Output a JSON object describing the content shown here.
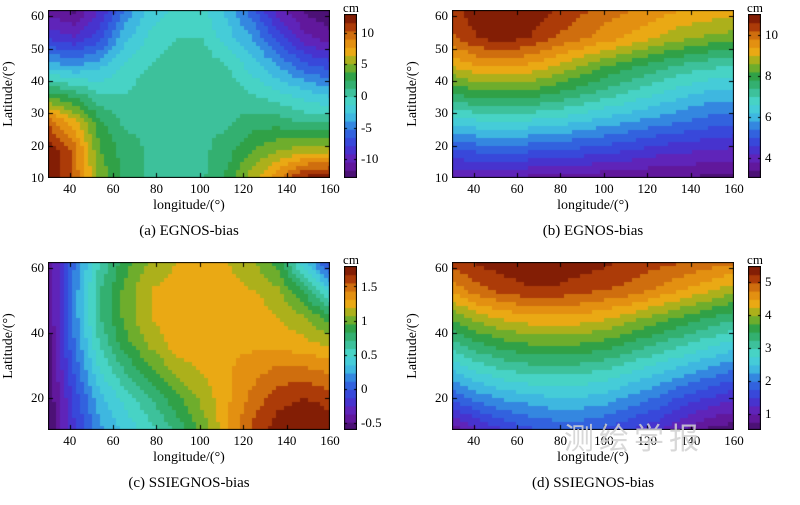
{
  "figure": {
    "background": "#ffffff",
    "text_color": "#000000",
    "watermark": "测绘学报",
    "levels": 20,
    "colormap_stops": [
      [
        0.0,
        "#420d63"
      ],
      [
        0.1,
        "#6b1caf"
      ],
      [
        0.2,
        "#3b3bd8"
      ],
      [
        0.3,
        "#2f6fe0"
      ],
      [
        0.38,
        "#3fbce0"
      ],
      [
        0.46,
        "#4ad8d2"
      ],
      [
        0.62,
        "#2aa04a"
      ],
      [
        0.7,
        "#8db31e"
      ],
      [
        0.78,
        "#f0a813"
      ],
      [
        0.86,
        "#d97d10"
      ],
      [
        0.93,
        "#a83607"
      ],
      [
        1.0,
        "#6e1004"
      ]
    ]
  },
  "chart_data": [
    {
      "type": "heatmap",
      "style": "filled-contour",
      "caption": "(a) EGNOS-bias",
      "xlabel": "longitude/(°)",
      "ylabel": "Latitude/(°)",
      "x_range": [
        30,
        160
      ],
      "y_range": [
        10,
        62
      ],
      "x_ticks": [
        40,
        60,
        80,
        100,
        120,
        140,
        160
      ],
      "y_ticks": [
        10,
        20,
        30,
        40,
        50,
        60
      ],
      "colorbar": {
        "label": "cm",
        "vmin": -13,
        "vmax": 13,
        "ticks": [
          {
            "v": 10,
            "label": "10"
          },
          {
            "v": 5,
            "label": "5"
          },
          {
            "v": 0,
            "label": "0"
          },
          {
            "v": -5,
            "label": "-5"
          },
          {
            "v": -10,
            "label": "-10"
          }
        ]
      },
      "vmin": -13,
      "vmax": 13,
      "grid_rows_top_to_bottom": true,
      "grid": [
        [
          -11,
          -12,
          -9,
          -5,
          -2,
          -1,
          -1,
          -3,
          -6,
          -10,
          -12,
          -13
        ],
        [
          -8,
          -9,
          -7,
          -3,
          -1,
          0,
          0,
          -2,
          -4,
          -7,
          -10,
          -11
        ],
        [
          -3,
          -4,
          -3,
          -1,
          0,
          1,
          1,
          0,
          -2,
          -4,
          -6,
          -7
        ],
        [
          3,
          2,
          0,
          0,
          1,
          1,
          1,
          1,
          0,
          -1,
          -2,
          -3
        ],
        [
          10,
          7,
          3,
          1,
          1,
          1,
          1,
          1,
          2,
          2,
          1,
          1
        ],
        [
          13,
          10,
          4,
          2,
          1,
          1,
          1,
          2,
          4,
          5,
          6,
          6
        ],
        [
          13,
          10,
          5,
          2,
          1,
          1,
          1,
          3,
          6,
          9,
          12,
          13
        ]
      ]
    },
    {
      "type": "heatmap",
      "style": "filled-contour",
      "caption": "(b) EGNOS-bias",
      "xlabel": "longitude/(°)",
      "ylabel": "Latitude/(°)",
      "x_range": [
        30,
        160
      ],
      "y_range": [
        10,
        62
      ],
      "x_ticks": [
        40,
        60,
        80,
        100,
        120,
        140,
        160
      ],
      "y_ticks": [
        10,
        20,
        30,
        40,
        50,
        60
      ],
      "colorbar": {
        "label": "cm",
        "vmin": 3,
        "vmax": 11,
        "ticks": [
          {
            "v": 10,
            "label": "10"
          },
          {
            "v": 8,
            "label": "8"
          },
          {
            "v": 6,
            "label": "6"
          },
          {
            "v": 4,
            "label": "4"
          }
        ]
      },
      "vmin": 3,
      "vmax": 11,
      "grid_rows_top_to_bottom": true,
      "grid": [
        [
          10.4,
          10.9,
          11,
          10.9,
          10.6,
          10.3,
          10,
          9.8,
          9.6,
          9.4,
          9.3,
          9.2
        ],
        [
          10.1,
          10.6,
          10.8,
          10.6,
          10.2,
          9.9,
          9.6,
          9.3,
          9,
          8.7,
          8.5,
          8.4
        ],
        [
          9,
          9.4,
          9.5,
          9.3,
          9,
          8.6,
          8.2,
          7.9,
          7.6,
          7.3,
          7.1,
          7
        ],
        [
          7.8,
          8,
          8.1,
          8,
          7.8,
          7.5,
          7.2,
          6.9,
          6.6,
          6.3,
          6.1,
          6
        ],
        [
          6.4,
          6.5,
          6.6,
          6.5,
          6.4,
          6.2,
          6,
          5.8,
          5.6,
          5.4,
          5.2,
          5.1
        ],
        [
          5,
          5.1,
          5.1,
          5.1,
          5,
          4.9,
          4.8,
          4.6,
          4.4,
          4.3,
          4.2,
          4.1
        ],
        [
          3.8,
          3.8,
          3.8,
          3.7,
          3.7,
          3.6,
          3.5,
          3.5,
          3.4,
          3.4,
          3.3,
          3.3
        ]
      ]
    },
    {
      "type": "heatmap",
      "style": "filled-contour",
      "caption": "(c) SSIEGNOS-bias",
      "xlabel": "longitude/(°)",
      "ylabel": "Latitude/(°)",
      "x_range": [
        30,
        160
      ],
      "y_range": [
        10,
        62
      ],
      "x_ticks": [
        40,
        60,
        80,
        100,
        120,
        140,
        160
      ],
      "y_ticks": [
        20,
        40,
        60
      ],
      "colorbar": {
        "label": "cm",
        "vmin": -0.6,
        "vmax": 1.8,
        "ticks": [
          {
            "v": 1.5,
            "label": "1.5"
          },
          {
            "v": 1,
            "label": "1"
          },
          {
            "v": 0.5,
            "label": "0.5"
          },
          {
            "v": 0,
            "label": "0"
          },
          {
            "v": -0.5,
            "label": "-0.5"
          }
        ]
      },
      "vmin": -0.6,
      "vmax": 1.8,
      "grid_rows_top_to_bottom": true,
      "grid": [
        [
          -0.5,
          0.1,
          0.6,
          0.9,
          1.1,
          1.2,
          1.2,
          1.2,
          1.1,
          0.9,
          0.4,
          -0.1
        ],
        [
          -0.5,
          0.15,
          0.7,
          1,
          1.2,
          1.25,
          1.25,
          1.25,
          1.2,
          1.1,
          0.8,
          0.4
        ],
        [
          -0.5,
          0.15,
          0.7,
          1,
          1.2,
          1.3,
          1.3,
          1.3,
          1.3,
          1.2,
          1.1,
          0.9
        ],
        [
          -0.55,
          0.1,
          0.6,
          0.9,
          1.1,
          1.25,
          1.3,
          1.3,
          1.3,
          1.3,
          1.25,
          1.2
        ],
        [
          -0.55,
          0,
          0.45,
          0.7,
          0.9,
          1.1,
          1.2,
          1.3,
          1.4,
          1.5,
          1.5,
          1.45
        ],
        [
          -0.6,
          -0.1,
          0.3,
          0.5,
          0.7,
          0.9,
          1.1,
          1.3,
          1.5,
          1.65,
          1.7,
          1.65
        ],
        [
          -0.6,
          -0.15,
          0.2,
          0.4,
          0.55,
          0.75,
          1,
          1.3,
          1.6,
          1.75,
          1.8,
          1.75
        ]
      ]
    },
    {
      "type": "heatmap",
      "style": "filled-contour",
      "caption": "(d) SSIEGNOS-bias",
      "xlabel": "longitude/(°)",
      "ylabel": "Latitude/(°)",
      "x_range": [
        30,
        160
      ],
      "y_range": [
        10,
        62
      ],
      "x_ticks": [
        40,
        60,
        80,
        100,
        120,
        140,
        160
      ],
      "y_ticks": [
        20,
        40,
        60
      ],
      "colorbar": {
        "label": "cm",
        "vmin": 0.5,
        "vmax": 5.5,
        "ticks": [
          {
            "v": 5,
            "label": "5"
          },
          {
            "v": 4,
            "label": "4"
          },
          {
            "v": 3,
            "label": "3"
          },
          {
            "v": 2,
            "label": "2"
          },
          {
            "v": 1,
            "label": "1"
          }
        ]
      },
      "vmin": 0.5,
      "vmax": 5.5,
      "grid_rows_top_to_bottom": true,
      "grid": [
        [
          5.1,
          5.3,
          5.4,
          5.5,
          5.5,
          5.4,
          5.3,
          5.2,
          5.1,
          5,
          4.9,
          4.8
        ],
        [
          4.6,
          4.9,
          5.1,
          5.2,
          5.2,
          5.1,
          5,
          4.9,
          4.7,
          4.5,
          4.3,
          4.1
        ],
        [
          3.8,
          4.1,
          4.3,
          4.4,
          4.4,
          4.4,
          4.3,
          4.1,
          3.9,
          3.7,
          3.5,
          3.3
        ],
        [
          3.1,
          3.4,
          3.6,
          3.7,
          3.7,
          3.7,
          3.6,
          3.4,
          3.2,
          3,
          2.8,
          2.6
        ],
        [
          2.4,
          2.7,
          2.9,
          3,
          3,
          3,
          2.9,
          2.7,
          2.5,
          2.3,
          2.1,
          1.9
        ],
        [
          1.7,
          2,
          2.2,
          2.3,
          2.4,
          2.4,
          2.3,
          2.1,
          1.9,
          1.6,
          1.4,
          1.2
        ],
        [
          0.8,
          1.2,
          1.5,
          1.7,
          1.8,
          1.8,
          1.7,
          1.5,
          1.3,
          1,
          0.7,
          0.6
        ]
      ]
    }
  ]
}
